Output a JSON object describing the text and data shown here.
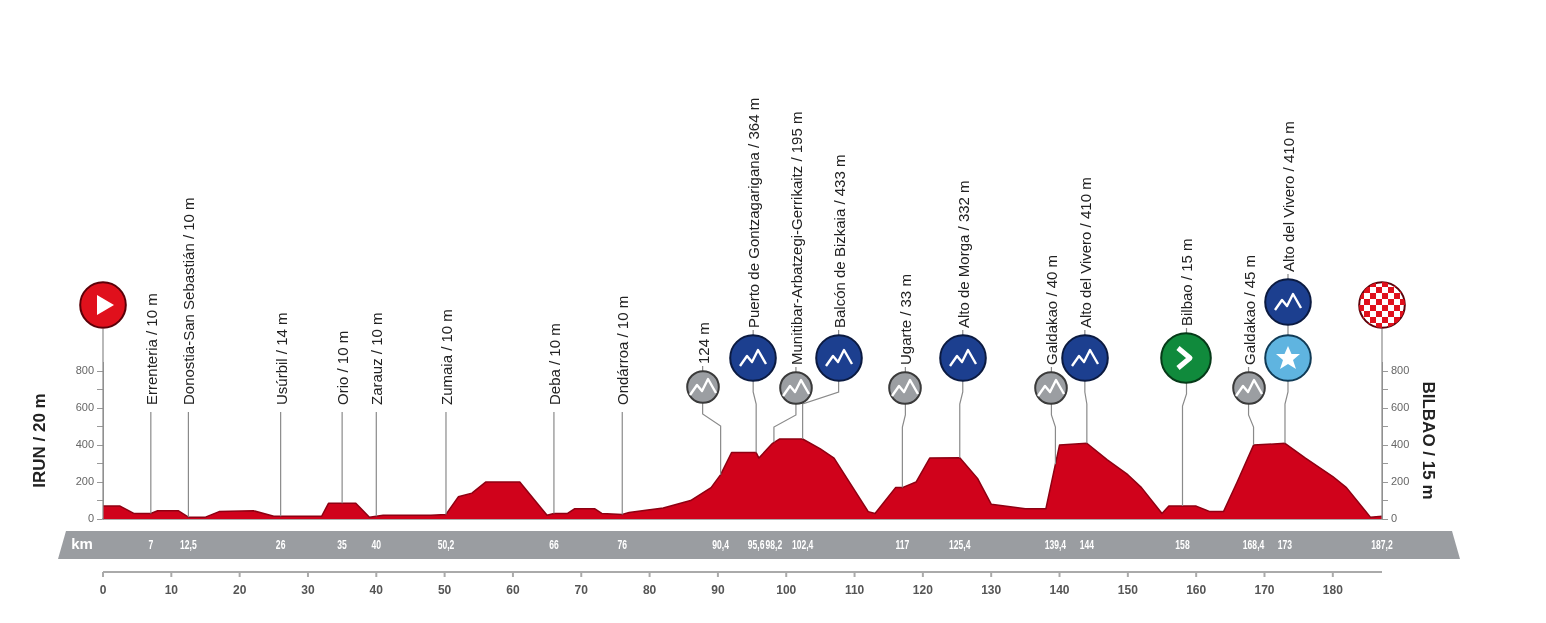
{
  "chart_data": {
    "type": "area",
    "ylabel": "IRUN / 20 m",
    "y2label": "BILBAO / 15 m",
    "x2label": "km",
    "grid": false,
    "marker": "none",
    "x": [
      0,
      2.5,
      4.5,
      7,
      8,
      11,
      12.5,
      15,
      17,
      22,
      25,
      32,
      33,
      37,
      39,
      41,
      48,
      50.2,
      52,
      54,
      56,
      61,
      65,
      66,
      68,
      69,
      72,
      73,
      76,
      77,
      82,
      86,
      89,
      90.4,
      92,
      95.6,
      96,
      98,
      99,
      102.4,
      105,
      107,
      112,
      113,
      116,
      117,
      119,
      121,
      125.4,
      128,
      130,
      135,
      138,
      140,
      144,
      147,
      150,
      152,
      155,
      156,
      160,
      162,
      164,
      166,
      168.4,
      173,
      176,
      180,
      182,
      185.5,
      187.2
    ],
    "series": [
      {
        "color": "#d0021b",
        "values": [
          70,
          70,
          30,
          30,
          45,
          45,
          10,
          10,
          40,
          45,
          15,
          15,
          85,
          85,
          10,
          20,
          20,
          25,
          120,
          140,
          200,
          200,
          20,
          30,
          30,
          55,
          55,
          30,
          25,
          35,
          60,
          100,
          170,
          240,
          360,
          360,
          330,
          410,
          433,
          433,
          380,
          330,
          40,
          30,
          170,
          170,
          200,
          330,
          332,
          220,
          80,
          55,
          55,
          400,
          410,
          320,
          240,
          170,
          30,
          70,
          70,
          40,
          40,
          200,
          400,
          410,
          330,
          230,
          170,
          10,
          15
        ]
      }
    ],
    "xlim": [
      0,
      187.2
    ],
    "xticks": [
      0,
      10,
      20,
      30,
      40,
      50,
      60,
      70,
      80,
      90,
      100,
      110,
      120,
      130,
      140,
      150,
      160,
      170,
      180
    ],
    "x2lim": [
      0,
      187.2
    ],
    "x2ticks": [
      {
        "value": 7,
        "label": "7"
      },
      {
        "value": 12.5,
        "label": "12,5"
      },
      {
        "value": 26,
        "label": "26"
      },
      {
        "value": 35,
        "label": "35"
      },
      {
        "value": 40,
        "label": "40"
      },
      {
        "value": 50.2,
        "label": "50,2"
      },
      {
        "value": 66,
        "label": "66"
      },
      {
        "value": 76,
        "label": "76"
      },
      {
        "value": 90.4,
        "label": "90,4"
      },
      {
        "value": 95.6,
        "label": "95,6"
      },
      {
        "value": 98.2,
        "label": "98,2"
      },
      {
        "value": 102.4,
        "label": "102,4"
      },
      {
        "value": 117,
        "label": "117"
      },
      {
        "value": 125.4,
        "label": "125,4"
      },
      {
        "value": 139.4,
        "label": "139,4"
      },
      {
        "value": 144,
        "label": "144"
      },
      {
        "value": 158,
        "label": "158"
      },
      {
        "value": 168.4,
        "label": "168,4"
      },
      {
        "value": 173,
        "label": "173"
      },
      {
        "value": 187.2,
        "label": "187,2"
      }
    ],
    "ylim": [
      0,
      850
    ],
    "yticks": [
      0,
      {
        "value": 100,
        "label": null
      },
      200,
      {
        "value": 300,
        "label": null
      },
      400,
      {
        "value": 500,
        "label": null
      },
      600,
      {
        "value": 700,
        "label": null
      },
      800
    ],
    "y2lim": [
      0,
      850
    ],
    "y2ticks": [
      0,
      {
        "value": 100,
        "label": null
      },
      200,
      {
        "value": 300,
        "label": null
      },
      400,
      {
        "value": 500,
        "label": null
      },
      600,
      {
        "value": 700,
        "label": null
      },
      800
    ],
    "annotations": [
      {
        "text": "Errenteria / 10 m",
        "x": 7,
        "y": 30
      },
      {
        "text": "Donostia-San Sebastián / 10 m",
        "x": 12.5,
        "y": 10
      },
      {
        "text": "Usúrbil / 14 m",
        "x": 26,
        "y": 15
      },
      {
        "text": "Orio / 10 m",
        "x": 35,
        "y": 85
      },
      {
        "text": "Zarauz / 10 m",
        "x": 40,
        "y": 15
      },
      {
        "text": "Zumaia / 10 m",
        "x": 50.2,
        "y": 25
      },
      {
        "text": "Deba / 10 m",
        "x": 66,
        "y": 30
      },
      {
        "text": "Ondárroa / 10 m",
        "x": 76,
        "y": 25
      },
      {
        "text": "124 m",
        "x": 90.4,
        "y": 240
      },
      {
        "text": "Puerto de Gontzagarigana / 364 m",
        "x": 95.6,
        "y": 360
      },
      {
        "text": "Munitibar-Arbatzegi-Gerrikaitz / 195 m",
        "x": 98.2,
        "y": 415
      },
      {
        "text": "Balcón de Bizkaia / 433 m",
        "x": 102.4,
        "y": 433
      },
      {
        "text": "Ugarte / 33 m",
        "x": 117,
        "y": 170
      },
      {
        "text": "Alto de Morga / 332 m",
        "x": 125.4,
        "y": 332
      },
      {
        "text": "Galdakao / 40 m",
        "x": 139.4,
        "y": 296
      },
      {
        "text": "Alto del Vivero / 410 m",
        "x": 144,
        "y": 410
      },
      {
        "text": "Bilbao / 15 m",
        "x": 158,
        "y": 70
      },
      {
        "text": "Galdakao / 45 m",
        "x": 168.4,
        "y": 400
      },
      {
        "text": "Alto del Vivero / 410 m",
        "x": 173,
        "y": 410
      }
    ]
  }
}
